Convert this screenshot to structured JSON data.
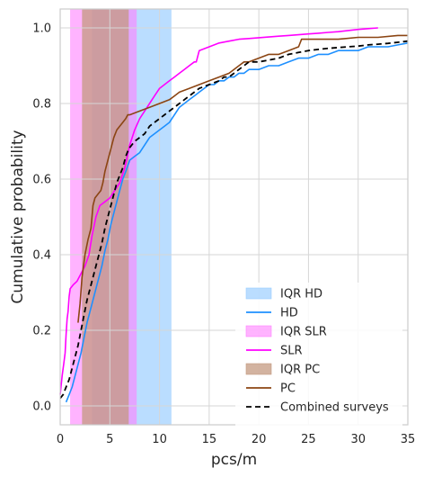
{
  "chart_data": {
    "type": "line",
    "title": "",
    "xlabel": "pcs/m",
    "ylabel": "Cumulative probability",
    "xlim": [
      0,
      35
    ],
    "ylim": [
      -0.05,
      1.05
    ],
    "xticks": [
      0,
      5,
      10,
      15,
      20,
      25,
      30,
      35
    ],
    "xtick_labels": [
      "0",
      "5",
      "10",
      "15",
      "20",
      "25",
      "30",
      "35"
    ],
    "yticks": [
      0.0,
      0.2,
      0.4,
      0.6,
      0.8,
      1.0
    ],
    "ytick_labels": [
      "0.0",
      "0.2",
      "0.4",
      "0.6",
      "0.8",
      "1.0"
    ],
    "grid": true,
    "legend_position": "lower-right",
    "colors": {
      "hd": "#1e90ff",
      "hd_fill": "#9ccfff",
      "slr": "#ff00ff",
      "slr_fill": "#ff80ff",
      "pc": "#8b4513",
      "pc_fill": "#c49a80",
      "combined": "#000000",
      "grid": "#d6d6d6",
      "frame": "#cccccc"
    },
    "bands": [
      {
        "name": "IQR HD",
        "x0": 3.2,
        "x1": 11.2,
        "color_key": "hd_fill",
        "opacity": 0.7
      },
      {
        "name": "IQR SLR",
        "x0": 1.0,
        "x1": 7.7,
        "color_key": "slr_fill",
        "opacity": 0.6
      },
      {
        "name": "IQR PC",
        "x0": 2.2,
        "x1": 6.9,
        "color_key": "pc_fill",
        "opacity": 0.75
      }
    ],
    "series": [
      {
        "name": "HD",
        "color_key": "hd",
        "dash": "",
        "width": 1.6,
        "x": [
          0.6,
          0.9,
          1.2,
          1.5,
          1.8,
          2.1,
          2.4,
          2.7,
          3.0,
          3.3,
          3.6,
          3.9,
          4.2,
          4.5,
          4.8,
          5.1,
          5.4,
          5.7,
          6.0,
          6.3,
          6.6,
          7.0,
          7.5,
          8.0,
          8.5,
          9.0,
          9.5,
          10.0,
          10.5,
          11.0,
          11.5,
          12.0,
          12.5,
          13.0,
          13.5,
          14.0,
          14.5,
          15.0,
          15.5,
          16.0,
          16.5,
          17.0,
          17.5,
          18.0,
          18.5,
          19.0,
          20.0,
          21.0,
          22.0,
          23.0,
          24.0,
          25.0,
          26.0,
          27.0,
          28.0,
          29.0,
          30.0,
          31.0,
          32.0,
          33.0,
          34.0,
          35.0
        ],
        "y": [
          0.01,
          0.03,
          0.05,
          0.08,
          0.11,
          0.14,
          0.18,
          0.22,
          0.25,
          0.28,
          0.31,
          0.34,
          0.37,
          0.41,
          0.44,
          0.48,
          0.51,
          0.54,
          0.57,
          0.6,
          0.62,
          0.65,
          0.66,
          0.67,
          0.69,
          0.71,
          0.72,
          0.73,
          0.74,
          0.75,
          0.77,
          0.79,
          0.8,
          0.81,
          0.82,
          0.83,
          0.84,
          0.85,
          0.85,
          0.86,
          0.86,
          0.87,
          0.87,
          0.88,
          0.88,
          0.89,
          0.89,
          0.9,
          0.9,
          0.91,
          0.92,
          0.92,
          0.93,
          0.93,
          0.94,
          0.94,
          0.94,
          0.95,
          0.95,
          0.95,
          0.955,
          0.96
        ]
      },
      {
        "name": "SLR",
        "color_key": "slr",
        "dash": "",
        "width": 1.6,
        "x": [
          0.0,
          0.2,
          0.35,
          0.5,
          0.6,
          0.7,
          0.8,
          0.9,
          1.0,
          1.3,
          1.7,
          2.1,
          2.5,
          2.9,
          3.2,
          3.6,
          4.0,
          4.5,
          5.0,
          5.5,
          6.0,
          6.5,
          7.0,
          7.5,
          8.0,
          8.5,
          9.0,
          9.5,
          10.0,
          10.5,
          11.0,
          11.5,
          12.0,
          12.5,
          13.0,
          13.5,
          13.7,
          14.0,
          15.0,
          16.0,
          17.0,
          18.0,
          19.0,
          20.0,
          21.0,
          22.0,
          23.0,
          24.0,
          25.0,
          26.0,
          27.0,
          28.0,
          29.0,
          30.0,
          31.0,
          32.0
        ],
        "y": [
          0.03,
          0.08,
          0.11,
          0.14,
          0.19,
          0.23,
          0.25,
          0.29,
          0.31,
          0.32,
          0.33,
          0.35,
          0.37,
          0.4,
          0.45,
          0.5,
          0.53,
          0.54,
          0.55,
          0.57,
          0.59,
          0.63,
          0.69,
          0.73,
          0.76,
          0.78,
          0.8,
          0.82,
          0.84,
          0.85,
          0.86,
          0.87,
          0.88,
          0.89,
          0.9,
          0.91,
          0.91,
          0.94,
          0.95,
          0.96,
          0.965,
          0.97,
          0.972,
          0.974,
          0.976,
          0.978,
          0.98,
          0.982,
          0.984,
          0.986,
          0.988,
          0.99,
          0.993,
          0.996,
          0.998,
          1.0
        ]
      },
      {
        "name": "PC",
        "color_key": "pc",
        "dash": "",
        "width": 1.6,
        "x": [
          1.8,
          2.0,
          2.2,
          2.5,
          2.8,
          3.1,
          3.3,
          3.5,
          3.8,
          4.1,
          4.3,
          4.5,
          4.8,
          5.1,
          5.4,
          5.7,
          6.0,
          6.3,
          6.6,
          6.8,
          7.0,
          8.0,
          9.0,
          10.0,
          11.0,
          11.5,
          12.0,
          13.0,
          14.0,
          15.0,
          16.0,
          17.0,
          18.0,
          18.5,
          19.0,
          20.0,
          21.0,
          22.0,
          23.0,
          24.0,
          24.3,
          25.0,
          26.0,
          28.0,
          30.0,
          32.0,
          34.0,
          35.0
        ],
        "y": [
          0.22,
          0.27,
          0.34,
          0.4,
          0.44,
          0.47,
          0.53,
          0.55,
          0.56,
          0.57,
          0.59,
          0.62,
          0.65,
          0.68,
          0.71,
          0.73,
          0.74,
          0.75,
          0.76,
          0.77,
          0.77,
          0.78,
          0.79,
          0.8,
          0.81,
          0.82,
          0.83,
          0.84,
          0.85,
          0.86,
          0.87,
          0.88,
          0.9,
          0.91,
          0.91,
          0.92,
          0.93,
          0.93,
          0.94,
          0.95,
          0.97,
          0.97,
          0.97,
          0.97,
          0.975,
          0.975,
          0.98,
          0.98
        ]
      },
      {
        "name": "Combined surveys",
        "color_key": "combined",
        "dash": "6,4",
        "width": 1.8,
        "x": [
          0.0,
          0.3,
          0.6,
          0.9,
          1.2,
          1.5,
          1.8,
          2.1,
          2.4,
          2.7,
          3.0,
          3.3,
          3.6,
          3.9,
          4.2,
          4.5,
          4.8,
          5.1,
          5.4,
          5.7,
          6.0,
          6.3,
          6.6,
          6.9,
          7.2,
          7.5,
          8.0,
          8.5,
          9.0,
          9.5,
          10.0,
          10.5,
          11.0,
          11.5,
          12.0,
          12.5,
          13.0,
          13.5,
          14.0,
          14.5,
          15.0,
          15.5,
          16.0,
          16.5,
          17.0,
          17.5,
          18.0,
          18.5,
          19.0,
          20.0,
          21.0,
          22.0,
          23.0,
          24.0,
          25.0,
          26.0,
          27.0,
          28.0,
          29.0,
          30.0,
          31.0,
          32.0,
          33.0,
          34.0,
          35.0
        ],
        "y": [
          0.02,
          0.03,
          0.05,
          0.07,
          0.1,
          0.13,
          0.16,
          0.2,
          0.24,
          0.28,
          0.31,
          0.34,
          0.37,
          0.4,
          0.43,
          0.47,
          0.5,
          0.53,
          0.56,
          0.59,
          0.61,
          0.63,
          0.66,
          0.68,
          0.69,
          0.7,
          0.71,
          0.72,
          0.74,
          0.75,
          0.76,
          0.77,
          0.78,
          0.79,
          0.8,
          0.81,
          0.82,
          0.83,
          0.84,
          0.845,
          0.85,
          0.855,
          0.86,
          0.87,
          0.87,
          0.88,
          0.89,
          0.9,
          0.91,
          0.91,
          0.915,
          0.92,
          0.93,
          0.935,
          0.94,
          0.943,
          0.946,
          0.948,
          0.95,
          0.952,
          0.955,
          0.957,
          0.959,
          0.962,
          0.965
        ]
      }
    ],
    "legend_entries": [
      {
        "label": "IQR HD",
        "kind": "patch",
        "color_key": "hd_fill",
        "opacity": 0.7
      },
      {
        "label": "HD",
        "kind": "line",
        "color_key": "hd",
        "dash": ""
      },
      {
        "label": "IQR SLR",
        "kind": "patch",
        "color_key": "slr_fill",
        "opacity": 0.6
      },
      {
        "label": "SLR",
        "kind": "line",
        "color_key": "slr",
        "dash": ""
      },
      {
        "label": "IQR PC",
        "kind": "patch",
        "color_key": "pc_fill",
        "opacity": 0.75
      },
      {
        "label": "PC",
        "kind": "line",
        "color_key": "pc",
        "dash": ""
      },
      {
        "label": "Combined surveys",
        "kind": "line",
        "color_key": "combined",
        "dash": "6,4"
      }
    ]
  }
}
